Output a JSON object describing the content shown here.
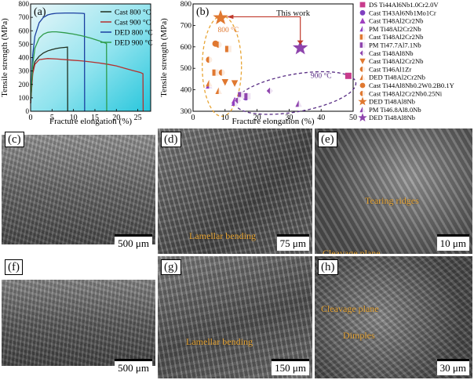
{
  "chart_data": [
    {
      "panel": "(a)",
      "type": "line",
      "xlabel": "Fracture elongation (%)",
      "ylabel": "Tensile strength (MPa)",
      "xlim": [
        0,
        28
      ],
      "ylim": [
        0,
        800
      ],
      "xticks": [
        0,
        5,
        10,
        15,
        20,
        25
      ],
      "yticks": [
        0,
        100,
        200,
        300,
        400,
        500,
        600,
        700,
        800
      ],
      "legend": "top-right",
      "series": [
        {
          "name": "Cast  800 °C",
          "color": "#1f2f1f",
          "x": [
            0,
            0.5,
            1,
            2,
            3,
            4,
            5,
            6,
            7,
            8,
            8.6,
            8.65
          ],
          "y": [
            60,
            300,
            370,
            410,
            435,
            450,
            460,
            468,
            473,
            476,
            478,
            0
          ]
        },
        {
          "name": "Cast  900 °C",
          "color": "#b5302e",
          "x": [
            0,
            0.5,
            1,
            2,
            4,
            6,
            8,
            10,
            12,
            14,
            16,
            18,
            20,
            22,
            24,
            25.5,
            26.2,
            26.25
          ],
          "y": [
            60,
            280,
            350,
            385,
            393,
            390,
            385,
            380,
            375,
            368,
            360,
            350,
            338,
            320,
            302,
            290,
            280,
            0
          ]
        },
        {
          "name": "DED  800 °C",
          "color": "#1a3fa0",
          "x": [
            0,
            0.5,
            1,
            2,
            3,
            4,
            5,
            6,
            8,
            10,
            12,
            12.55,
            12.6
          ],
          "y": [
            80,
            420,
            560,
            660,
            700,
            718,
            726,
            730,
            732,
            732,
            730,
            728,
            0
          ]
        },
        {
          "name": "DED  900 °C",
          "color": "#2e9b4a",
          "x": [
            0,
            0.5,
            1,
            2,
            3,
            4,
            5,
            6,
            8,
            10,
            12,
            14,
            16,
            17.7,
            17.75
          ],
          "y": [
            80,
            350,
            470,
            545,
            575,
            588,
            592,
            592,
            585,
            575,
            562,
            545,
            525,
            505,
            0
          ]
        }
      ]
    },
    {
      "panel": "(b)",
      "type": "scatter",
      "xlabel": "Fracture elongation (%)",
      "ylabel": "Tensile strength (MPa)",
      "xlim": [
        0,
        50
      ],
      "ylim": [
        300,
        800
      ],
      "xticks": [
        0,
        10,
        20,
        30,
        40,
        50
      ],
      "yticks": [
        300,
        400,
        500,
        600,
        700,
        800
      ],
      "annotations": {
        "this_work": "This work",
        "group_800": "800 °C",
        "group_900": "900 °C"
      },
      "legend": "right",
      "series": [
        {
          "name": "DS Ti44Al6Nb1.0Cr2.0V",
          "marker": "square",
          "color": "#c83c8c",
          "points": [
            [
              48.5,
              465
            ]
          ]
        },
        {
          "name": "Cast Ti43Al6Nb1Mo1Cr",
          "marker": "circle",
          "color": "#8040c0",
          "points": [
            [
              16.5,
              365
            ]
          ]
        },
        {
          "name": "Cast Ti48Al2Cr2Nb",
          "marker": "triangle",
          "color": "#a040c0",
          "points": [
            [
              13,
              350
            ]
          ]
        },
        {
          "name": "PM Ti48Al2Cr2Nb",
          "marker": "triangle-half",
          "color": "#9040c0",
          "points": [
            [
              5,
              420
            ],
            [
              13,
              340
            ]
          ]
        },
        {
          "name": "Cast Ti48Al2Cr2Nb",
          "marker": "square-half",
          "color": "#e07830",
          "points": [
            [
              11,
              590
            ],
            [
              7,
              480
            ]
          ]
        },
        {
          "name": "PM Ti47.7Al7.1Nb",
          "marker": "square-half",
          "color": "#8e44ad",
          "points": [
            [
              15,
              375
            ],
            [
              17,
              370
            ]
          ]
        },
        {
          "name": "Cast Ti48Al8Nb",
          "marker": "diamond-half",
          "color": "#8e44ad",
          "points": [
            [
              14,
              350
            ],
            [
              24,
              395
            ]
          ]
        },
        {
          "name": "Cast Ti48Al2Cr2Nb",
          "marker": "triangle-down",
          "color": "#e07830",
          "points": [
            [
              10,
              435
            ],
            [
              13,
              430
            ]
          ]
        },
        {
          "name": "Cast Ti46Al1Zr",
          "marker": "pentagon-half",
          "color": "#e07830",
          "points": [
            [
              8,
              610
            ],
            [
              9,
              480
            ]
          ]
        },
        {
          "name": "DED Ti48Al2Cr2Nb",
          "marker": "triangle-half",
          "color": "#e07830",
          "points": [
            [
              5,
              430
            ],
            [
              8,
              395
            ]
          ]
        },
        {
          "name": "Cast Ti44Al8Nb0.2W0.2B0.1Y",
          "marker": "hexagon",
          "color": "#e07830",
          "points": [
            [
              7,
              615
            ]
          ]
        },
        {
          "name": "Cast Ti48Al2Cr2Nb0.25Ni",
          "marker": "circle-half",
          "color": "#e07830",
          "points": [
            [
              5,
              540
            ]
          ]
        },
        {
          "name": "DED Ti48Al8Nb",
          "marker": "star",
          "color": "#e07830",
          "points": [
            [
              8.6,
              735
            ]
          ]
        },
        {
          "name": "PM Ti46.8Al8.0Nb",
          "marker": "triangle-half",
          "color": "#8e44ad",
          "points": [
            [
              33,
              335
            ]
          ]
        },
        {
          "name": "DED Ti48Al8Nb",
          "marker": "star",
          "color": "#8e44ad",
          "points": [
            [
              33.5,
              595
            ]
          ]
        }
      ]
    }
  ],
  "panels": {
    "a_label": "(a)",
    "b_label": "(b)",
    "c": {
      "label": "(c)",
      "scale": "500 μm"
    },
    "d": {
      "label": "(d)",
      "scale": "75 μm",
      "annotation": "Lamellar bending"
    },
    "e": {
      "label": "(e)",
      "scale": "10 μm",
      "annotations": [
        "Tearing ridges",
        "Cleavage plane"
      ]
    },
    "f": {
      "label": "(f)",
      "scale": "500 μm"
    },
    "g": {
      "label": "(g)",
      "scale": "150 μm",
      "annotation": "Lamellar bending"
    },
    "h": {
      "label": "(h)",
      "scale": "30 μm",
      "annotations": [
        "Cleavage plane",
        "Dimples"
      ]
    }
  },
  "colors": {
    "annotation": "#e8a534",
    "arrow_red": "#c0392b"
  }
}
